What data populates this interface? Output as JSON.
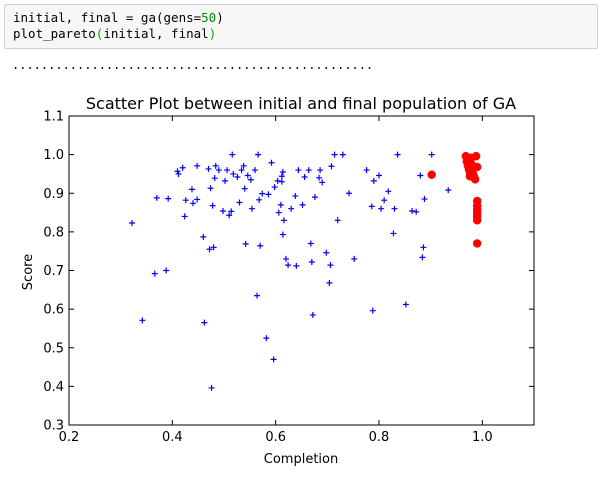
{
  "cell": {
    "lines": [
      [
        {
          "t": "initial, final = ga(gens=",
          "c": "plain"
        },
        {
          "t": "50",
          "c": "num"
        },
        {
          "t": ")",
          "c": "plain"
        }
      ],
      [
        {
          "t": "plot_pareto",
          "c": "plain"
        },
        {
          "t": "(",
          "c": "paren"
        },
        {
          "t": "initial, final",
          "c": "plain"
        },
        {
          "t": ")",
          "c": "paren"
        }
      ]
    ]
  },
  "output": {
    "progress_text": ".................................................."
  },
  "colors": {
    "initial": "#0000ff",
    "final": "#ff0000"
  },
  "chart_data": {
    "type": "scatter",
    "title": "Scatter Plot between initial and final population of GA",
    "xlabel": "Completion",
    "ylabel": "Score",
    "xlim": [
      0.2,
      1.1
    ],
    "ylim": [
      0.3,
      1.1
    ],
    "xticks": [
      "0.2",
      "0.4",
      "0.6",
      "0.8",
      "1.0"
    ],
    "xtick_values": [
      0.2,
      0.4,
      0.6,
      0.8,
      1.0
    ],
    "yticks": [
      "0.3",
      "0.4",
      "0.5",
      "0.6",
      "0.7",
      "0.8",
      "0.9",
      "1.0",
      "1.1"
    ],
    "ytick_values": [
      0.3,
      0.4,
      0.5,
      0.6,
      0.7,
      0.8,
      0.9,
      1.0,
      1.1
    ],
    "grid": false,
    "series": [
      {
        "marker": "plus",
        "points": [
          [
            0.322,
            0.823
          ],
          [
            0.342,
            0.571
          ],
          [
            0.366,
            0.692
          ],
          [
            0.37,
            0.888
          ],
          [
            0.388,
            0.7
          ],
          [
            0.392,
            0.886
          ],
          [
            0.41,
            0.957
          ],
          [
            0.412,
            0.95
          ],
          [
            0.42,
            0.966
          ],
          [
            0.424,
            0.84
          ],
          [
            0.426,
            0.882
          ],
          [
            0.438,
            0.91
          ],
          [
            0.44,
            0.874
          ],
          [
            0.448,
            0.971
          ],
          [
            0.448,
            0.884
          ],
          [
            0.46,
            0.787
          ],
          [
            0.462,
            0.565
          ],
          [
            0.47,
            0.963
          ],
          [
            0.472,
            0.755
          ],
          [
            0.474,
            0.913
          ],
          [
            0.476,
            0.396
          ],
          [
            0.478,
            0.868
          ],
          [
            0.48,
            0.76
          ],
          [
            0.482,
            0.939
          ],
          [
            0.484,
            0.971
          ],
          [
            0.49,
            0.96
          ],
          [
            0.498,
            0.854
          ],
          [
            0.502,
            0.932
          ],
          [
            0.506,
            0.96
          ],
          [
            0.51,
            0.843
          ],
          [
            0.514,
            0.853
          ],
          [
            0.516,
            1.0
          ],
          [
            0.518,
            0.95
          ],
          [
            0.526,
            0.942
          ],
          [
            0.53,
            0.876
          ],
          [
            0.534,
            0.96
          ],
          [
            0.538,
            0.971
          ],
          [
            0.54,
            0.912
          ],
          [
            0.542,
            0.769
          ],
          [
            0.546,
            0.946
          ],
          [
            0.552,
            0.935
          ],
          [
            0.554,
            0.86
          ],
          [
            0.56,
            0.96
          ],
          [
            0.564,
            0.635
          ],
          [
            0.566,
            1.0
          ],
          [
            0.568,
            0.883
          ],
          [
            0.57,
            0.764
          ],
          [
            0.574,
            0.899
          ],
          [
            0.582,
            0.525
          ],
          [
            0.586,
            0.897
          ],
          [
            0.592,
            0.979
          ],
          [
            0.596,
            0.47
          ],
          [
            0.598,
            0.916
          ],
          [
            0.604,
            0.932
          ],
          [
            0.606,
            0.85
          ],
          [
            0.61,
            0.87
          ],
          [
            0.612,
            0.93
          ],
          [
            0.612,
            0.944
          ],
          [
            0.614,
            0.955
          ],
          [
            0.614,
            0.793
          ],
          [
            0.616,
            0.83
          ],
          [
            0.62,
            0.73
          ],
          [
            0.624,
            0.714
          ],
          [
            0.63,
            0.86
          ],
          [
            0.638,
            0.893
          ],
          [
            0.64,
            0.712
          ],
          [
            0.644,
            0.96
          ],
          [
            0.652,
            0.87
          ],
          [
            0.656,
            0.942
          ],
          [
            0.664,
            0.96
          ],
          [
            0.668,
            0.77
          ],
          [
            0.67,
            0.722
          ],
          [
            0.672,
            0.585
          ],
          [
            0.676,
            0.89
          ],
          [
            0.684,
            0.94
          ],
          [
            0.686,
            0.96
          ],
          [
            0.69,
            0.928
          ],
          [
            0.698,
            0.746
          ],
          [
            0.704,
            0.668
          ],
          [
            0.706,
            0.714
          ],
          [
            0.708,
            0.97
          ],
          [
            0.714,
            1.0
          ],
          [
            0.72,
            0.83
          ],
          [
            0.73,
            1.0
          ],
          [
            0.742,
            0.9
          ],
          [
            0.752,
            0.73
          ],
          [
            0.776,
            0.96
          ],
          [
            0.786,
            0.866
          ],
          [
            0.788,
            0.596
          ],
          [
            0.79,
            0.932
          ],
          [
            0.8,
            0.946
          ],
          [
            0.804,
            0.86
          ],
          [
            0.81,
            0.882
          ],
          [
            0.818,
            0.905
          ],
          [
            0.828,
            0.796
          ],
          [
            0.83,
            0.86
          ],
          [
            0.836,
            1.0
          ],
          [
            0.852,
            0.612
          ],
          [
            0.864,
            0.854
          ],
          [
            0.872,
            0.852
          ],
          [
            0.88,
            0.946
          ],
          [
            0.884,
            0.734
          ],
          [
            0.886,
            0.76
          ],
          [
            0.888,
            0.885
          ],
          [
            0.902,
            1.0
          ],
          [
            0.934,
            0.908
          ]
        ]
      },
      {
        "marker": "circle",
        "points": [
          [
            0.902,
            0.948
          ],
          [
            0.968,
            0.996
          ],
          [
            0.97,
            0.982
          ],
          [
            0.972,
            0.972
          ],
          [
            0.974,
            0.962
          ],
          [
            0.976,
            0.955
          ],
          [
            0.976,
            0.944
          ],
          [
            0.978,
            0.978
          ],
          [
            0.978,
            0.992
          ],
          [
            0.98,
            0.96
          ],
          [
            0.982,
            0.95
          ],
          [
            0.984,
            0.942
          ],
          [
            0.986,
            0.936
          ],
          [
            0.988,
            0.996
          ],
          [
            0.99,
            0.968
          ],
          [
            0.99,
            0.88
          ],
          [
            0.99,
            0.868
          ],
          [
            0.99,
            0.858
          ],
          [
            0.99,
            0.848
          ],
          [
            0.99,
            0.84
          ],
          [
            0.99,
            0.83
          ],
          [
            0.99,
            0.77
          ]
        ]
      }
    ]
  }
}
